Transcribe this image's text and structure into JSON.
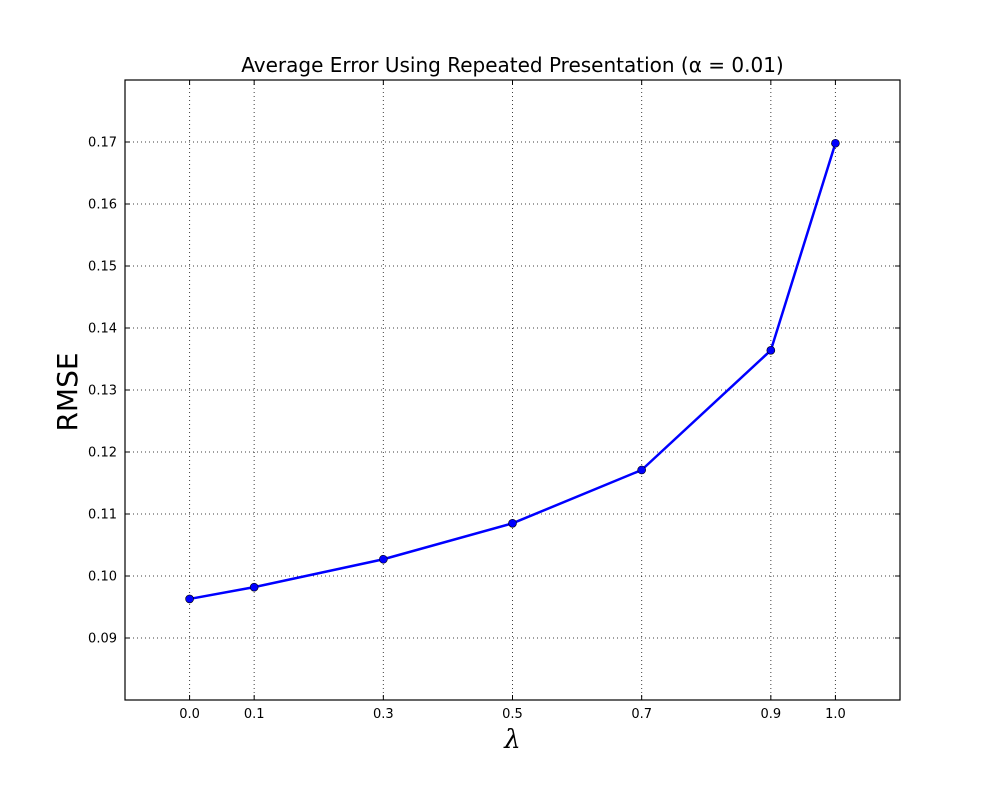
{
  "chart_data": {
    "type": "line",
    "title": "Average Error Using Repeated Presentation (α = 0.01)",
    "xlabel": "λ",
    "ylabel": "RMSE",
    "x_ticks": [
      "0.0",
      "0.1",
      "0.3",
      "0.5",
      "0.7",
      "0.9",
      "1.0"
    ],
    "y_ticks": [
      "0.09",
      "0.10",
      "0.11",
      "0.12",
      "0.13",
      "0.14",
      "0.15",
      "0.16",
      "0.17"
    ],
    "xlim": [
      -0.1,
      1.1
    ],
    "ylim": [
      0.08,
      0.18
    ],
    "grid": true,
    "series": [
      {
        "color": "#0000ff",
        "marker": "circle",
        "x": [
          0.0,
          0.1,
          0.3,
          0.5,
          0.7,
          0.9,
          1.0
        ],
        "y": [
          0.0963,
          0.0982,
          0.1027,
          0.1085,
          0.1171,
          0.1364,
          0.1698
        ]
      }
    ]
  }
}
